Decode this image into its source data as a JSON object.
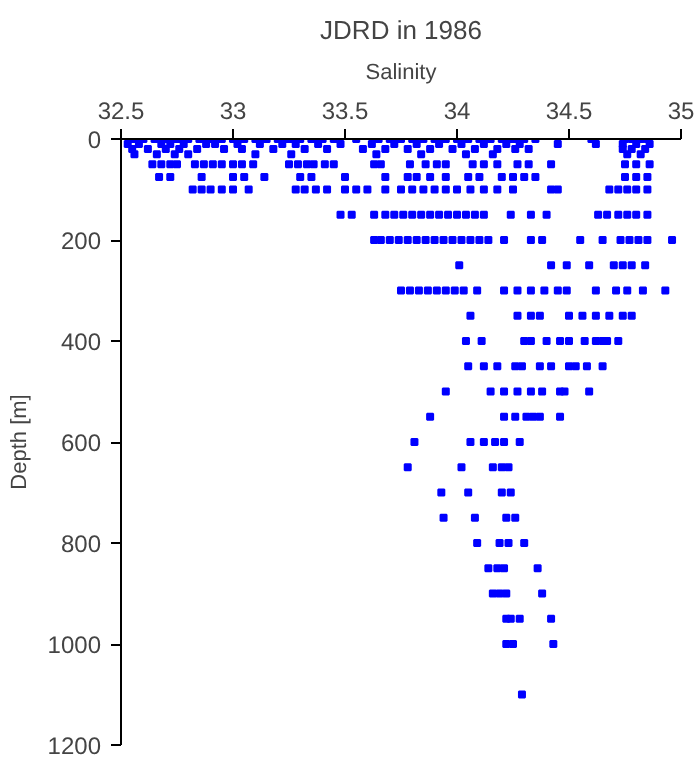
{
  "chart_data": {
    "type": "scatter",
    "title": "JDRD in 1986",
    "xlabel": "Salinity",
    "ylabel": "Depth [m]",
    "xlim": [
      32.5,
      35
    ],
    "ylim": [
      1200,
      0
    ],
    "xticks": [
      32.5,
      33,
      33.5,
      34,
      34.5,
      35
    ],
    "yticks": [
      0,
      200,
      400,
      600,
      800,
      1000,
      1200
    ],
    "grid": false,
    "marker": "square",
    "series": [
      {
        "color": "#0000ff",
        "x": [
          32.55,
          32.6,
          32.65,
          32.7,
          32.75,
          32.8,
          32.85,
          32.9,
          32.95,
          33.0,
          33.05,
          33.1,
          33.15,
          33.2,
          33.25,
          33.3,
          33.35,
          33.4,
          33.45,
          33.55,
          33.65,
          33.7,
          33.75,
          33.8,
          33.85,
          33.9,
          33.95,
          34.0,
          34.05,
          34.1,
          34.15,
          34.2,
          34.25,
          34.3,
          34.35,
          34.6,
          34.75,
          34.78,
          34.82,
          34.85
        ],
        "values": [
          0,
          0,
          0,
          0,
          0,
          0,
          0,
          0,
          0,
          0,
          0,
          0,
          0,
          0,
          0,
          0,
          0,
          0,
          0,
          0,
          0,
          0,
          0,
          0,
          0,
          0,
          0,
          0,
          0,
          0,
          0,
          0,
          0,
          0,
          0,
          0,
          0,
          0,
          0,
          0
        ]
      },
      {
        "color": "#0000ff",
        "x": [
          32.53,
          32.58,
          32.68,
          32.72,
          32.78,
          32.88,
          32.92,
          33.02,
          33.12,
          33.22,
          33.28,
          33.38,
          33.48,
          33.62,
          33.72,
          33.82,
          33.92,
          34.02,
          34.12,
          34.22,
          34.28,
          34.45,
          34.62,
          34.74,
          34.8,
          34.86
        ],
        "values": [
          10,
          10,
          10,
          10,
          10,
          10,
          10,
          10,
          10,
          10,
          10,
          10,
          10,
          10,
          10,
          10,
          10,
          10,
          10,
          10,
          10,
          10,
          10,
          10,
          10,
          10
        ]
      },
      {
        "color": "#0000ff",
        "x": [
          32.55,
          32.62,
          32.7,
          32.76,
          32.84,
          32.96,
          33.04,
          33.18,
          33.32,
          33.42,
          33.58,
          33.68,
          33.78,
          33.88,
          33.98,
          34.08,
          34.18,
          34.26,
          34.32,
          34.74,
          34.78,
          34.84
        ],
        "values": [
          20,
          20,
          20,
          20,
          20,
          20,
          20,
          20,
          20,
          20,
          20,
          20,
          20,
          20,
          20,
          20,
          20,
          20,
          20,
          20,
          20,
          20
        ]
      },
      {
        "color": "#0000ff",
        "x": [
          32.56,
          32.66,
          32.74,
          32.8,
          33.1,
          33.26,
          33.64,
          33.84,
          34.04,
          34.16,
          34.76,
          34.82
        ],
        "values": [
          30,
          30,
          30,
          30,
          30,
          30,
          30,
          30,
          30,
          30,
          30,
          30
        ]
      },
      {
        "color": "#0000ff",
        "x": [
          32.64,
          32.68,
          32.72,
          32.75,
          32.83,
          32.87,
          32.91,
          32.95,
          33.0,
          33.04,
          33.09,
          33.25,
          33.29,
          33.33,
          33.36,
          33.41,
          33.45,
          33.63,
          33.66,
          33.79,
          33.86,
          33.91,
          33.95,
          34.07,
          34.12,
          34.18,
          34.27,
          34.32,
          34.42,
          34.75,
          34.8,
          34.86
        ],
        "values": [
          50,
          50,
          50,
          50,
          50,
          50,
          50,
          50,
          50,
          50,
          50,
          50,
          50,
          50,
          50,
          50,
          50,
          50,
          50,
          50,
          50,
          50,
          50,
          50,
          50,
          50,
          50,
          50,
          50,
          50,
          50,
          50
        ]
      },
      {
        "color": "#0000ff",
        "x": [
          32.67,
          32.72,
          32.86,
          33.0,
          33.05,
          33.14,
          33.3,
          33.35,
          33.5,
          33.68,
          33.78,
          33.82,
          33.88,
          33.95,
          34.05,
          34.1,
          34.2,
          34.25,
          34.3,
          34.35,
          34.75,
          34.8,
          34.85
        ],
        "values": [
          75,
          75,
          75,
          75,
          75,
          75,
          75,
          75,
          75,
          75,
          75,
          75,
          75,
          75,
          75,
          75,
          75,
          75,
          75,
          75,
          75,
          75,
          75
        ]
      },
      {
        "color": "#0000ff",
        "x": [
          32.82,
          32.86,
          32.9,
          32.95,
          33.0,
          33.07,
          33.28,
          33.32,
          33.37,
          33.42,
          33.5,
          33.55,
          33.6,
          33.68,
          33.75,
          33.8,
          33.85,
          33.9,
          33.95,
          34.0,
          34.06,
          34.12,
          34.18,
          34.25,
          34.42,
          34.45,
          34.68,
          34.72,
          34.76,
          34.8,
          34.85
        ],
        "values": [
          100,
          100,
          100,
          100,
          100,
          100,
          100,
          100,
          100,
          100,
          100,
          100,
          100,
          100,
          100,
          100,
          100,
          100,
          100,
          100,
          100,
          100,
          100,
          100,
          100,
          100,
          100,
          100,
          100,
          100,
          100
        ]
      },
      {
        "color": "#0000ff",
        "x": [
          33.48,
          33.53,
          33.63,
          33.68,
          33.72,
          33.76,
          33.8,
          33.84,
          33.88,
          33.92,
          33.96,
          34.0,
          34.04,
          34.08,
          34.12,
          34.24,
          34.33,
          34.4,
          34.63,
          34.67,
          34.72,
          34.76,
          34.8,
          34.85
        ],
        "values": [
          150,
          150,
          150,
          150,
          150,
          150,
          150,
          150,
          150,
          150,
          150,
          150,
          150,
          150,
          150,
          150,
          150,
          150,
          150,
          150,
          150,
          150,
          150,
          150
        ]
      },
      {
        "color": "#0000ff",
        "x": [
          33.63,
          33.66,
          33.7,
          33.74,
          33.78,
          33.82,
          33.86,
          33.9,
          33.94,
          33.98,
          34.02,
          34.06,
          34.1,
          34.14,
          34.21,
          34.33,
          34.38,
          34.55,
          34.65,
          34.73,
          34.77,
          34.81,
          34.85,
          34.96
        ],
        "values": [
          200,
          200,
          200,
          200,
          200,
          200,
          200,
          200,
          200,
          200,
          200,
          200,
          200,
          200,
          200,
          200,
          200,
          200,
          200,
          200,
          200,
          200,
          200,
          200
        ]
      },
      {
        "color": "#0000ff",
        "x": [
          34.01,
          34.42,
          34.49,
          34.59,
          34.7,
          34.74,
          34.78,
          34.84
        ],
        "values": [
          250,
          250,
          250,
          250,
          250,
          250,
          250,
          250
        ]
      },
      {
        "color": "#0000ff",
        "x": [
          33.75,
          33.79,
          33.83,
          33.87,
          33.91,
          33.95,
          33.99,
          34.03,
          34.09,
          34.21,
          34.27,
          34.33,
          34.39,
          34.45,
          34.49,
          34.62,
          34.71,
          34.76,
          34.83,
          34.93
        ],
        "values": [
          300,
          300,
          300,
          300,
          300,
          300,
          300,
          300,
          300,
          300,
          300,
          300,
          300,
          300,
          300,
          300,
          300,
          300,
          300,
          300
        ]
      },
      {
        "color": "#0000ff",
        "x": [
          34.06,
          34.27,
          34.33,
          34.37,
          34.5,
          34.56,
          34.62,
          34.68,
          34.74,
          34.78
        ],
        "values": [
          350,
          350,
          350,
          350,
          350,
          350,
          350,
          350,
          350,
          350
        ]
      },
      {
        "color": "#0000ff",
        "x": [
          34.04,
          34.11,
          34.3,
          34.33,
          34.4,
          34.46,
          34.5,
          34.57,
          34.62,
          34.65,
          34.67,
          34.72
        ],
        "values": [
          400,
          400,
          400,
          400,
          400,
          400,
          400,
          400,
          400,
          400,
          400,
          400
        ]
      },
      {
        "color": "#0000ff",
        "x": [
          34.05,
          34.12,
          34.18,
          34.26,
          34.29,
          34.37,
          34.42,
          34.5,
          34.53,
          34.58,
          34.65
        ],
        "values": [
          450,
          450,
          450,
          450,
          450,
          450,
          450,
          450,
          450,
          450,
          450
        ]
      },
      {
        "color": "#0000ff",
        "x": [
          33.95,
          34.15,
          34.21,
          34.27,
          34.33,
          34.38,
          34.46,
          34.48,
          34.59
        ],
        "values": [
          500,
          500,
          500,
          500,
          500,
          500,
          500,
          500,
          500
        ]
      },
      {
        "color": "#0000ff",
        "x": [
          33.88,
          34.21,
          34.26,
          34.31,
          34.34,
          34.37,
          34.46
        ],
        "values": [
          550,
          550,
          550,
          550,
          550,
          550,
          550
        ]
      },
      {
        "color": "#0000ff",
        "x": [
          33.81,
          34.06,
          34.12,
          34.17,
          34.21,
          34.28
        ],
        "values": [
          600,
          600,
          600,
          600,
          600,
          600
        ]
      },
      {
        "color": "#0000ff",
        "x": [
          33.78,
          34.02,
          34.16,
          34.2,
          34.23
        ],
        "values": [
          650,
          650,
          650,
          650,
          650
        ]
      },
      {
        "color": "#0000ff",
        "x": [
          33.93,
          34.05,
          34.2,
          34.24
        ],
        "values": [
          700,
          700,
          700,
          700
        ]
      },
      {
        "color": "#0000ff",
        "x": [
          33.94,
          34.08,
          34.22,
          34.26
        ],
        "values": [
          750,
          750,
          750,
          750
        ]
      },
      {
        "color": "#0000ff",
        "x": [
          34.09,
          34.19,
          34.23,
          34.3
        ],
        "values": [
          800,
          800,
          800,
          800
        ]
      },
      {
        "color": "#0000ff",
        "x": [
          34.14,
          34.18,
          34.21,
          34.36
        ],
        "values": [
          850,
          850,
          850,
          850
        ]
      },
      {
        "color": "#0000ff",
        "x": [
          34.16,
          34.19,
          34.22,
          34.38
        ],
        "values": [
          900,
          900,
          900,
          900
        ]
      },
      {
        "color": "#0000ff",
        "x": [
          34.22,
          34.24,
          34.28,
          34.42
        ],
        "values": [
          950,
          950,
          950,
          950
        ]
      },
      {
        "color": "#0000ff",
        "x": [
          34.22,
          34.25,
          34.43
        ],
        "values": [
          1000,
          1000,
          1000
        ]
      },
      {
        "color": "#0000ff",
        "x": [
          34.29
        ],
        "values": [
          1100
        ]
      }
    ]
  }
}
